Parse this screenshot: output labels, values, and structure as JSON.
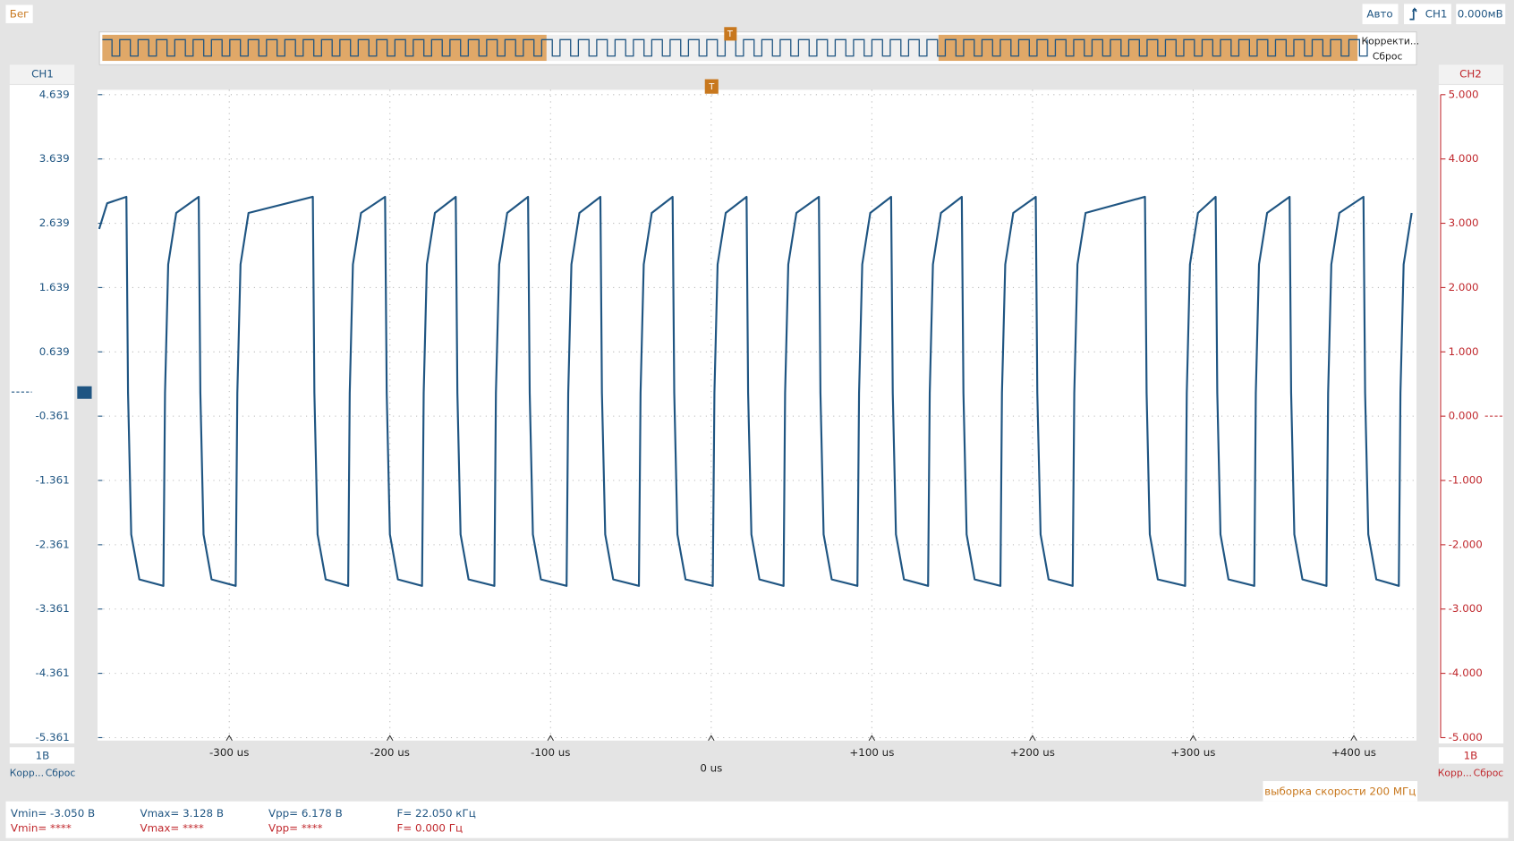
{
  "toolbar": {
    "run": "Бег",
    "mode": "Авто",
    "trigger_source": "CH1",
    "trigger_level": "0.000мВ"
  },
  "overview": {
    "correct": "Корректи...",
    "reset": "Сброс",
    "marker": "T"
  },
  "ch1": {
    "label": "CH1",
    "scale": "1В",
    "correct": "Корр...",
    "reset": "Сброс"
  },
  "ch2": {
    "label": "CH2",
    "scale": "1В",
    "correct": "Корр...",
    "reset": "Сброс"
  },
  "sample_rate": "выборка скорости 200 МГц",
  "measurements": {
    "ch1": [
      "Vmin= -3.050 В",
      "Vmax= 3.128 В",
      "Vpp= 6.178 В",
      "F= 22.050 кГц"
    ],
    "ch2": [
      "Vmin= ****",
      "Vmax= ****",
      "Vpp= ****",
      "F= 0.000 Гц"
    ]
  },
  "chart_data": {
    "type": "line",
    "x": [
      -381,
      -376,
      -364,
      -363,
      -361,
      -356,
      -341,
      -340,
      -338,
      -333,
      -319,
      -318,
      -316,
      -311,
      -296,
      -295,
      -293,
      -288,
      -248,
      -247,
      -245,
      -240,
      -226,
      -225,
      -223,
      -218,
      -203,
      -202,
      -200,
      -195,
      -180,
      -179,
      -177,
      -172,
      -159,
      -158,
      -156,
      -151,
      -135,
      -134,
      -132,
      -127,
      -114,
      -113,
      -111,
      -106,
      -90,
      -89,
      -87,
      -82,
      -69,
      -68,
      -66,
      -61,
      -45,
      -44,
      -42,
      -37,
      -24,
      -23,
      -21,
      -16,
      1,
      2,
      4,
      9,
      22,
      23,
      25,
      30,
      45,
      46,
      48,
      53,
      67,
      68,
      70,
      75,
      91,
      92,
      94,
      99,
      112,
      113,
      115,
      120,
      135,
      136,
      138,
      143,
      156,
      157,
      159,
      164,
      180,
      181,
      183,
      188,
      202,
      203,
      205,
      210,
      225,
      226,
      228,
      233,
      270,
      271,
      273,
      278,
      295,
      296,
      298,
      303,
      314,
      315,
      317,
      322,
      338,
      339,
      341,
      346,
      360,
      361,
      363,
      368,
      383,
      384,
      386,
      391,
      406,
      407,
      409,
      414,
      428,
      429,
      431,
      436
    ],
    "series": [
      {
        "color": "#1f5582",
        "values": [
          2.55,
          2.95,
          3.05,
          0,
          -2.2,
          -2.9,
          -3,
          0,
          2,
          2.8,
          3.05,
          0,
          -2.2,
          -2.9,
          -3,
          0,
          2,
          2.8,
          3.05,
          0,
          -2.2,
          -2.9,
          -3,
          0,
          2,
          2.8,
          3.05,
          0,
          -2.2,
          -2.9,
          -3,
          0,
          2,
          2.8,
          3.05,
          0,
          -2.2,
          -2.9,
          -3,
          0,
          2,
          2.8,
          3.05,
          0,
          -2.2,
          -2.9,
          -3,
          0,
          2,
          2.8,
          3.05,
          0,
          -2.2,
          -2.9,
          -3,
          0,
          2,
          2.8,
          3.05,
          0,
          -2.2,
          -2.9,
          -3,
          0,
          2,
          2.8,
          3.05,
          0,
          -2.2,
          -2.9,
          -3,
          0,
          2,
          2.8,
          3.05,
          0,
          -2.2,
          -2.9,
          -3,
          0,
          2,
          2.8,
          3.05,
          0,
          -2.2,
          -2.9,
          -3,
          0,
          2,
          2.8,
          3.05,
          0,
          -2.2,
          -2.9,
          -3,
          0,
          2,
          2.8,
          3.05,
          0,
          -2.2,
          -2.9,
          -3,
          0,
          2,
          2.8,
          3.05,
          0,
          -2.2,
          -2.9,
          -3,
          0,
          2,
          2.8,
          3.05,
          0,
          -2.2,
          -2.9,
          -3,
          0,
          2,
          2.8,
          3.05,
          0,
          -2.2,
          -2.9,
          -3,
          0,
          2,
          2.8,
          3.05,
          0,
          -2.2,
          -2.9,
          -3,
          0,
          2,
          2.8
        ]
      }
    ],
    "xlim": [
      -382,
      439
    ],
    "ylim": [
      -5.361,
      4.639
    ],
    "y2lim": [
      -5,
      5
    ],
    "xticks": [
      {
        "value": -300,
        "label": "-300 us"
      },
      {
        "value": -200,
        "label": "-200 us"
      },
      {
        "value": -100,
        "label": "-100 us"
      },
      {
        "value": 0,
        "label": "0 us"
      },
      {
        "value": 100,
        "label": "+100 us"
      },
      {
        "value": 200,
        "label": "+200 us"
      },
      {
        "value": 300,
        "label": "+300 us"
      },
      {
        "value": 400,
        "label": "+400 us"
      }
    ],
    "yticks": [
      4.639,
      3.639,
      2.639,
      1.639,
      0.639,
      -0.361,
      -1.361,
      -2.361,
      -3.361,
      -4.361,
      -5.361
    ],
    "y2ticks": [
      {
        "value": 5,
        "label": "5.000"
      },
      {
        "value": 4,
        "label": "4.000"
      },
      {
        "value": 3,
        "label": "3.000"
      },
      {
        "value": 2,
        "label": "2.000"
      },
      {
        "value": 1,
        "label": "1.000"
      },
      {
        "value": 0,
        "label": "0.000"
      },
      {
        "value": -1,
        "label": "-1.000"
      },
      {
        "value": -2,
        "label": "-2.000"
      },
      {
        "value": -3,
        "label": "-3.000"
      },
      {
        "value": -4,
        "label": "-4.000"
      },
      {
        "value": -5,
        "label": "-5.000"
      }
    ],
    "y2color": "#c0282d",
    "grid": true,
    "trigger_marker": "T"
  }
}
